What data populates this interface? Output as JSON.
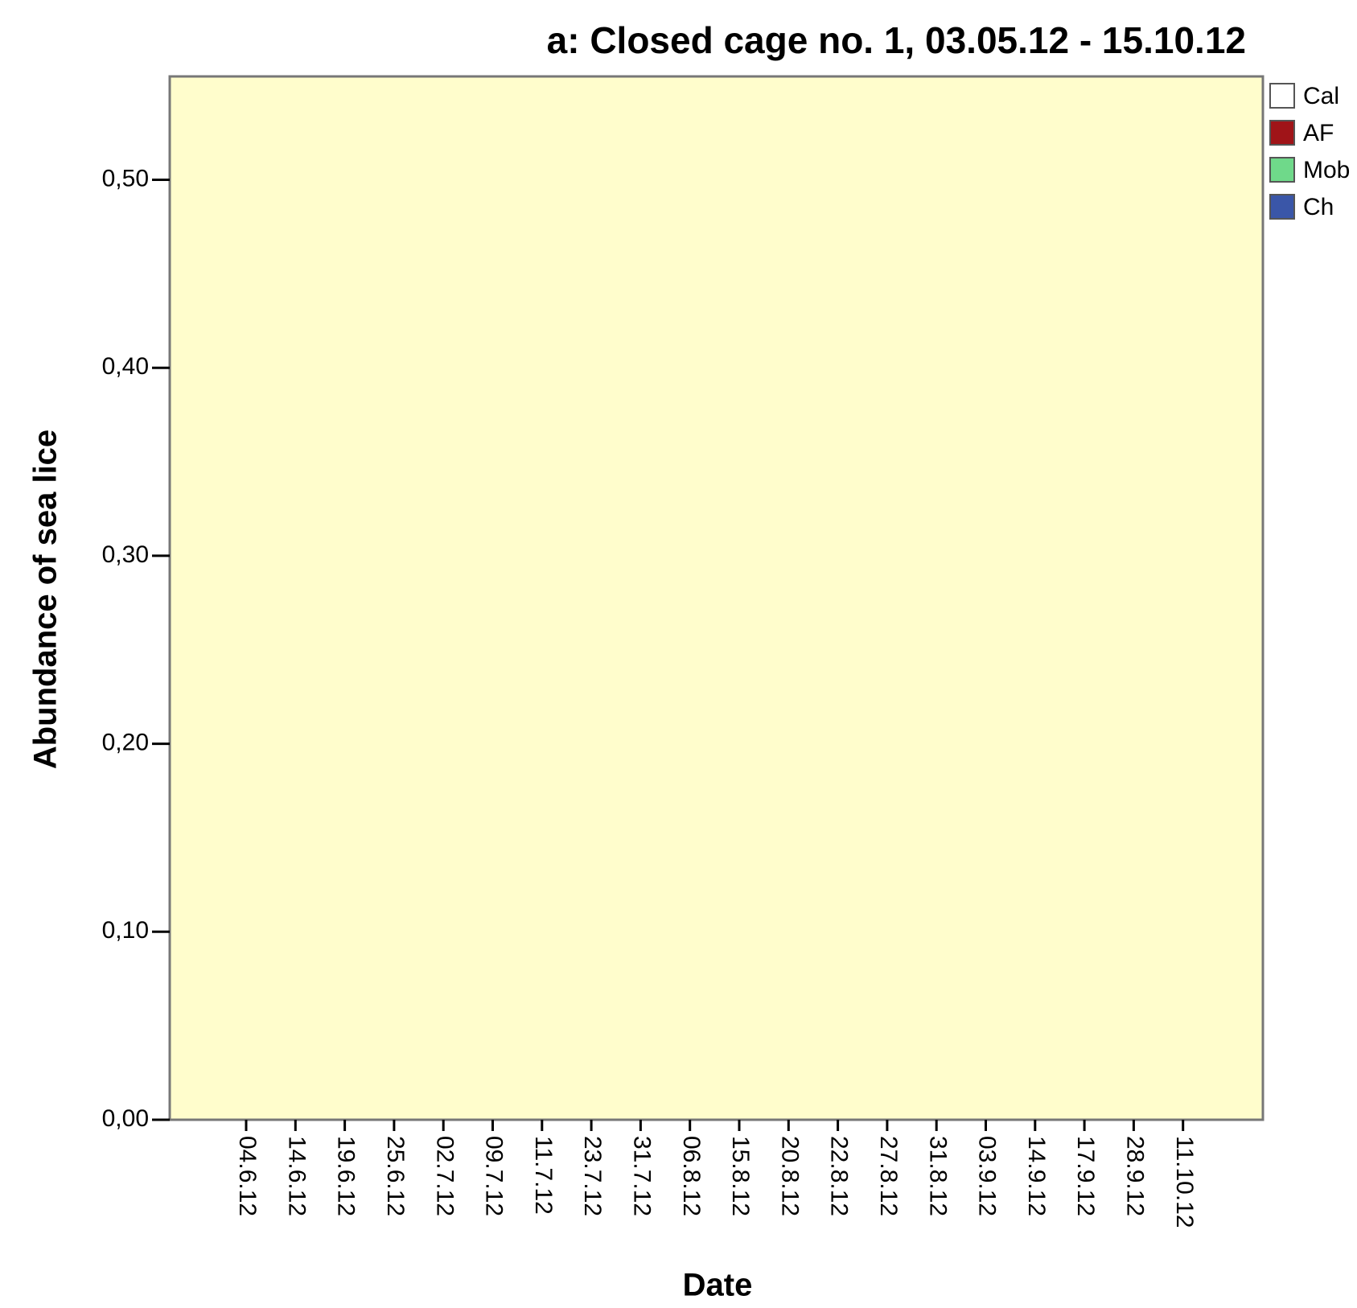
{
  "chart_data": {
    "type": "stacked_bar",
    "title": "a: Closed cage no. 1, 03.05.12 - 15.10.12",
    "x_label": "Date",
    "y_label": "Abundance of sea lice",
    "categories": [
      "04.6.12",
      "14.6.12",
      "19.6.12",
      "25.6.12",
      "02.7.12",
      "09.7.12",
      "11.7.12",
      "23.7.12",
      "31.7.12",
      "06.8.12",
      "15.8.12",
      "20.8.12",
      "22.8.12",
      "27.8.12",
      "31.8.12",
      "03.9.12",
      "14.9.12",
      "17.9.12",
      "28.9.12",
      "11.10.12"
    ],
    "series": [
      {
        "name": "Cal",
        "color": "#ffffff",
        "values": [
          0,
          0,
          0,
          0,
          0,
          0,
          0,
          0,
          0,
          0,
          0,
          0,
          0,
          0,
          0,
          0,
          0,
          0,
          0,
          0
        ]
      },
      {
        "name": "AF",
        "color": "#a01418",
        "values": [
          0,
          0,
          0,
          0,
          0,
          0,
          0,
          0,
          0,
          0,
          0,
          0,
          0,
          0,
          0,
          0,
          0,
          0,
          0,
          0
        ]
      },
      {
        "name": "Mob",
        "color": "#6fd98a",
        "values": [
          0,
          0,
          0,
          0,
          0,
          0,
          0,
          0,
          0,
          0,
          0,
          0,
          0,
          0,
          0,
          0,
          0,
          0,
          0,
          0
        ]
      },
      {
        "name": "Ch",
        "color": "#3a56a8",
        "values": [
          0,
          0,
          0,
          0,
          0,
          0,
          0,
          0,
          0,
          0,
          0,
          0,
          0,
          0,
          0,
          0,
          0,
          0,
          0,
          0
        ]
      }
    ],
    "ylim": [
      0,
      0.555
    ],
    "yticks": [
      {
        "value": 0,
        "label": "0,00"
      },
      {
        "value": 0.1,
        "label": "0,10"
      },
      {
        "value": 0.2,
        "label": "0,20"
      },
      {
        "value": 0.3,
        "label": "0,30"
      },
      {
        "value": 0.4,
        "label": "0,40"
      },
      {
        "value": 0.5,
        "label": "0,50"
      }
    ],
    "background": "#fffdcc",
    "legend": "right"
  }
}
